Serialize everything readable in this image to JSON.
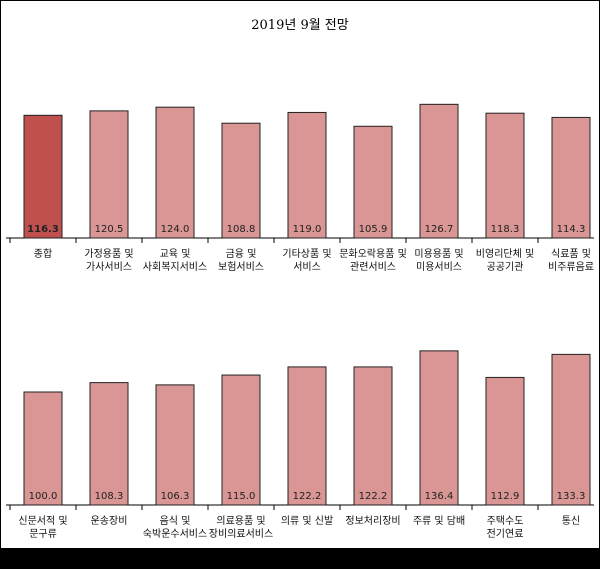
{
  "title": "2019년 9월 전망",
  "colors": {
    "bar": "#d99694",
    "highlight": "#c0504d",
    "bar_stroke": "#222222",
    "axis": "#000000"
  },
  "chart_data": [
    {
      "type": "bar",
      "title": "2019년 9월 전망",
      "categories": [
        [
          "종합"
        ],
        [
          "가정용품 및",
          "가사서비스"
        ],
        [
          "교육 및",
          "사회복지서비스"
        ],
        [
          "금융 및",
          "보험서비스"
        ],
        [
          "기타상품 및",
          "서비스"
        ],
        [
          "문화오락용품 및",
          "관련서비스"
        ],
        [
          "미용용품 및",
          "미용서비스"
        ],
        [
          "비영리단체 및",
          "공공기관"
        ],
        [
          "식료품 및",
          "비주류음료"
        ]
      ],
      "values": [
        116.3,
        120.5,
        124.0,
        108.8,
        119.0,
        105.9,
        126.7,
        118.3,
        114.3
      ],
      "value_labels": [
        "116.3",
        "120.5",
        "124.0",
        "108.8",
        "119.0",
        "105.9",
        "126.7",
        "118.3",
        "114.3"
      ],
      "highlight_index": 0,
      "xlabel": "",
      "ylabel": "",
      "grid": false,
      "legend": "none"
    },
    {
      "type": "bar",
      "title": "",
      "categories": [
        [
          "신문서적 및",
          "문구류"
        ],
        [
          "운송장비"
        ],
        [
          "음식 및",
          "숙박운수서비스"
        ],
        [
          "의료용품 및",
          "장비의료서비스"
        ],
        [
          "의류 및 신발"
        ],
        [
          "정보처리장비"
        ],
        [
          "주류 및 담배"
        ],
        [
          "주택수도",
          "전기연료"
        ],
        [
          "통신"
        ]
      ],
      "values": [
        100.0,
        108.3,
        106.3,
        115.0,
        122.2,
        122.2,
        136.4,
        112.9,
        133.3
      ],
      "value_labels": [
        "100.0",
        "108.3",
        "106.3",
        "115.0",
        "122.2",
        "122.2",
        "136.4",
        "112.9",
        "133.3"
      ],
      "highlight_index": -1,
      "xlabel": "",
      "ylabel": "",
      "grid": false,
      "legend": "none"
    }
  ]
}
